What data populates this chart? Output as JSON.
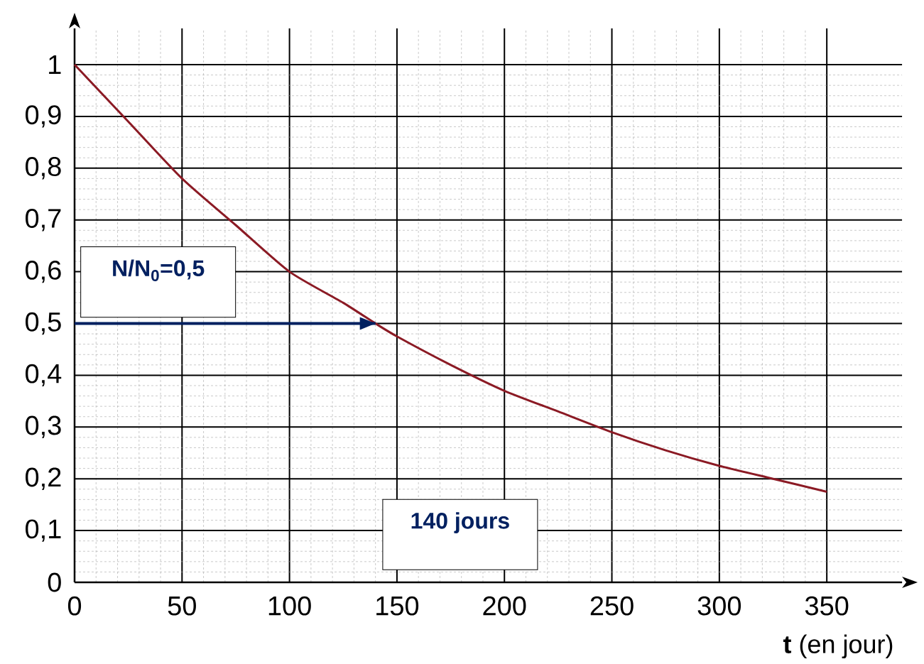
{
  "chart_data": {
    "type": "line",
    "xlabel": "**t** (en jour)",
    "x": [
      0,
      25,
      50,
      75,
      100,
      125,
      140,
      150,
      175,
      200,
      225,
      250,
      275,
      300,
      325,
      350
    ],
    "series": [
      {
        "color": "#8b1a24",
        "values": [
          1,
          0.89,
          0.78,
          0.69,
          0.6,
          0.54,
          0.5,
          0.475,
          0.42,
          0.37,
          0.33,
          0.29,
          0.255,
          0.225,
          0.2,
          0.175
        ]
      },
      {
        "color": "#002060",
        "x": [
          0,
          140
        ],
        "values": [
          0.5,
          0.5
        ]
      }
    ],
    "xlim": [
      0,
      385
    ],
    "ylim": [
      0,
      1.07
    ],
    "xticks": [
      0,
      50,
      100,
      150,
      200,
      250,
      300,
      350
    ],
    "yticks": [
      0,
      {
        "value": 0.1,
        "label": "0,1"
      },
      {
        "value": 0.2,
        "label": "0,2"
      },
      {
        "value": 0.3,
        "label": "0,3"
      },
      {
        "value": 0.4,
        "label": "0,4"
      },
      {
        "value": 0.5,
        "label": "0,5"
      },
      {
        "value": 0.6,
        "label": "0,6"
      },
      {
        "value": 0.7,
        "label": "0,7"
      },
      {
        "value": 0.8,
        "label": "0,8"
      },
      {
        "value": 0.9,
        "label": "0,9"
      },
      1
    ],
    "grid": true,
    "annotations": [
      "N/N$_{0}$=0,5",
      "140 jours"
    ]
  }
}
